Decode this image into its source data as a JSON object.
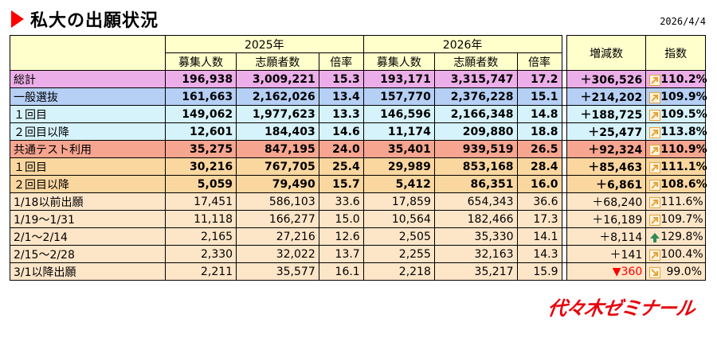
{
  "title": "私大の出願状況",
  "date": "2026/4/4",
  "headers": {
    "year1": "2025年",
    "year2": "2026年",
    "cols": [
      "募集人数",
      "志願者数",
      "倍率"
    ],
    "diff": "増減数",
    "index": "指数"
  },
  "rows": [
    {
      "label": "総計",
      "y1": [
        "196,938",
        "3,009,221",
        "15.3"
      ],
      "y2": [
        "193,171",
        "3,315,747",
        "17.2"
      ],
      "diff": "＋306,526",
      "index": "110.2%",
      "arrow": "up-right"
    },
    {
      "label": "一般選抜",
      "y1": [
        "161,663",
        "2,162,026",
        "13.4"
      ],
      "y2": [
        "157,770",
        "2,376,228",
        "15.1"
      ],
      "diff": "＋214,202",
      "index": "109.9%",
      "arrow": "up-right"
    },
    {
      "label": "１回目",
      "y1": [
        "149,062",
        "1,977,623",
        "13.3"
      ],
      "y2": [
        "146,596",
        "2,166,348",
        "14.8"
      ],
      "diff": "＋188,725",
      "index": "109.5%",
      "arrow": "up-right"
    },
    {
      "label": "２回目以降",
      "y1": [
        "12,601",
        "184,403",
        "14.6"
      ],
      "y2": [
        "11,174",
        "209,880",
        "18.8"
      ],
      "diff": "＋25,477",
      "index": "113.8%",
      "arrow": "up-right"
    },
    {
      "label": "共通テスト利用",
      "y1": [
        "35,275",
        "847,195",
        "24.0"
      ],
      "y2": [
        "35,401",
        "939,519",
        "26.5"
      ],
      "diff": "＋92,324",
      "index": "110.9%",
      "arrow": "up-right"
    },
    {
      "label": "１回目",
      "y1": [
        "30,216",
        "767,705",
        "25.4"
      ],
      "y2": [
        "29,989",
        "853,168",
        "28.4"
      ],
      "diff": "＋85,463",
      "index": "111.1%",
      "arrow": "up-right"
    },
    {
      "label": "２回目以降",
      "y1": [
        "5,059",
        "79,490",
        "15.7"
      ],
      "y2": [
        "5,412",
        "86,351",
        "16.0"
      ],
      "diff": "＋6,861",
      "index": "108.6%",
      "arrow": "up-right"
    },
    {
      "label": "1/18以前出願",
      "y1": [
        "17,451",
        "586,103",
        "33.6"
      ],
      "y2": [
        "17,859",
        "654,343",
        "36.6"
      ],
      "diff": "＋68,240",
      "index": "111.6%",
      "arrow": "up-right"
    },
    {
      "label": "1/19～1/31",
      "y1": [
        "11,118",
        "166,277",
        "15.0"
      ],
      "y2": [
        "10,564",
        "182,466",
        "17.3"
      ],
      "diff": "＋16,189",
      "index": "109.7%",
      "arrow": "up-right"
    },
    {
      "label": "2/1～2/14",
      "y1": [
        "2,165",
        "27,216",
        "12.6"
      ],
      "y2": [
        "2,505",
        "35,330",
        "14.1"
      ],
      "diff": "＋8,114",
      "index": "129.8%",
      "arrow": "up"
    },
    {
      "label": "2/15～2/28",
      "y1": [
        "2,330",
        "32,022",
        "13.7"
      ],
      "y2": [
        "2,255",
        "32,163",
        "14.3"
      ],
      "diff": "＋141",
      "index": "100.4%",
      "arrow": "up-right"
    },
    {
      "label": "3/1以降出願",
      "y1": [
        "2,211",
        "35,577",
        "16.1"
      ],
      "y2": [
        "2,218",
        "35,217",
        "15.9"
      ],
      "diff": "▼360",
      "index": "99.0%",
      "arrow": "down-right"
    }
  ],
  "colors": {
    "up": "#2e8b57",
    "upright": "#e8a23a",
    "downright": "#e8a23a",
    "negative": "#ff0000"
  },
  "logo": "代々木ゼミナール"
}
